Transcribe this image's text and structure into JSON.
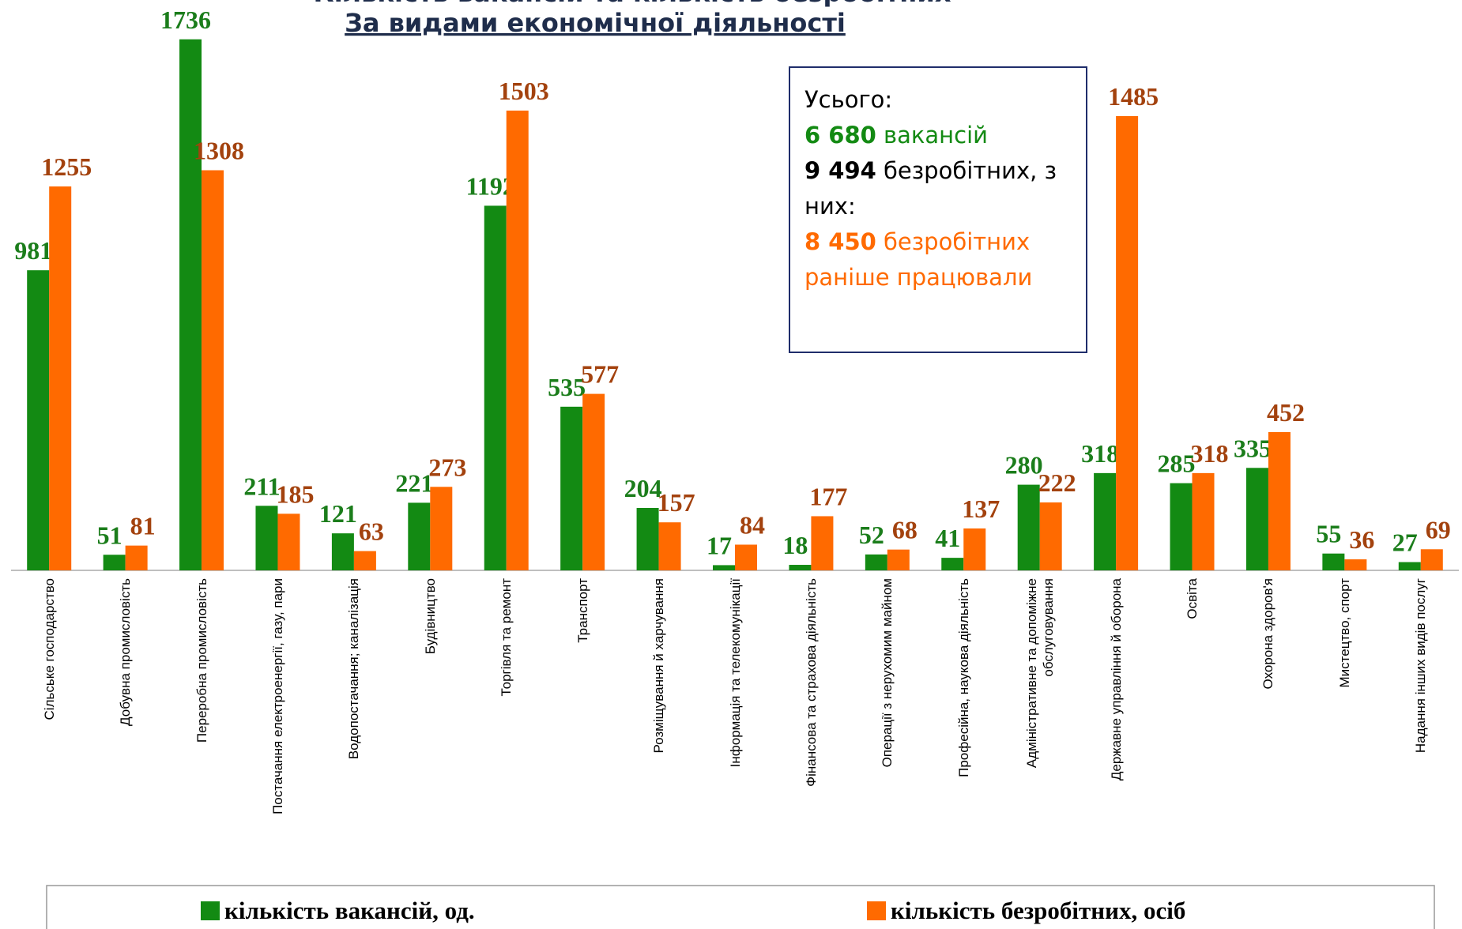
{
  "chart_data": {
    "type": "bar",
    "title": "Кількість вакансій та кількість безробітних",
    "subtitle": "За видами економічної діяльності",
    "categories": [
      "Сільське господарство",
      "Добувна промисловість",
      "Переробна промисловість",
      "Постачання електроенергії, газу, пари",
      "Водопостачання; каналізація",
      "Будівництво",
      "Торгівля та ремонт",
      "Транспорт",
      "Розміщування й харчування",
      "Інформація та телекомунікації",
      "Фінансова та страхова діяльність",
      "Операції з нерухомим майном",
      "Професійна, наукова діяльність",
      "Адміністративне та допоміжне обслуговування",
      "Державне управління й оборона",
      "Освіта",
      "Охорона здоров'я",
      "Мистецтво, спорт",
      "Надання інших видів послуг"
    ],
    "series": [
      {
        "name": "кількість вакансій, од.",
        "color": "#138a13",
        "label_color": "#1b7d1b",
        "values": [
          981,
          51,
          1736,
          211,
          121,
          221,
          1192,
          535,
          204,
          17,
          18,
          52,
          41,
          280,
          318,
          285,
          335,
          55,
          27
        ]
      },
      {
        "name": "кількість безробітних, осіб",
        "color": "#ff6a00",
        "label_color": "#a3420e",
        "values": [
          1255,
          81,
          1308,
          185,
          63,
          273,
          1503,
          577,
          157,
          84,
          177,
          68,
          137,
          222,
          1485,
          318,
          452,
          36,
          69
        ]
      }
    ],
    "ylim": [
      0,
      1800
    ],
    "legend": "bottom",
    "summary": {
      "heading": "Усього:",
      "vacancies_number": "6 680",
      "vacancies_text": "вакансій",
      "unemployed_number": "9 494",
      "unemployed_text": "безробітних, з них:",
      "worked_number": "8 450",
      "worked_text": "безробітних раніше працювали"
    }
  }
}
